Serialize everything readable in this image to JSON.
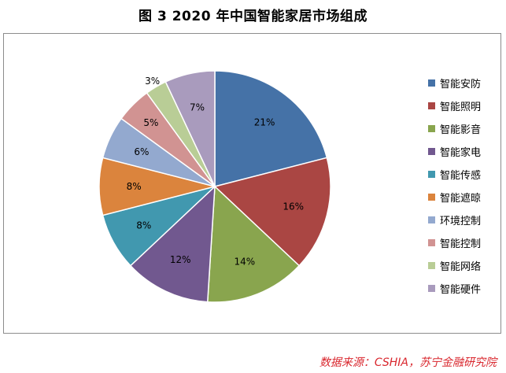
{
  "title": "图 3    2020 年中国智能家居市场组成",
  "source": "数据来源：CSHIA，苏宁金融研究院",
  "chart_data": {
    "type": "pie",
    "title": "图 3    2020 年中国智能家居市场组成",
    "legend_position": "right",
    "slices": [
      {
        "label": "智能安防",
        "value": 21,
        "display": "21%",
        "color": "#4572a7"
      },
      {
        "label": "智能照明",
        "value": 16,
        "display": "16%",
        "color": "#aa4643"
      },
      {
        "label": "智能影音",
        "value": 14,
        "display": "14%",
        "color": "#89a54e"
      },
      {
        "label": "智能家电",
        "value": 12,
        "display": "12%",
        "color": "#71588f"
      },
      {
        "label": "智能传感",
        "value": 8,
        "display": "8%",
        "color": "#4198af"
      },
      {
        "label": "智能遮晾",
        "value": 8,
        "display": "8%",
        "color": "#db843d"
      },
      {
        "label": "环境控制",
        "value": 6,
        "display": "6%",
        "color": "#93a9cf"
      },
      {
        "label": "智能控制",
        "value": 5,
        "display": "5%",
        "color": "#d19392"
      },
      {
        "label": "智能网络",
        "value": 3,
        "display": "3%",
        "color": "#b9cd96"
      },
      {
        "label": "智能硬件",
        "value": 7,
        "display": "7%",
        "color": "#a99bbd"
      }
    ]
  }
}
